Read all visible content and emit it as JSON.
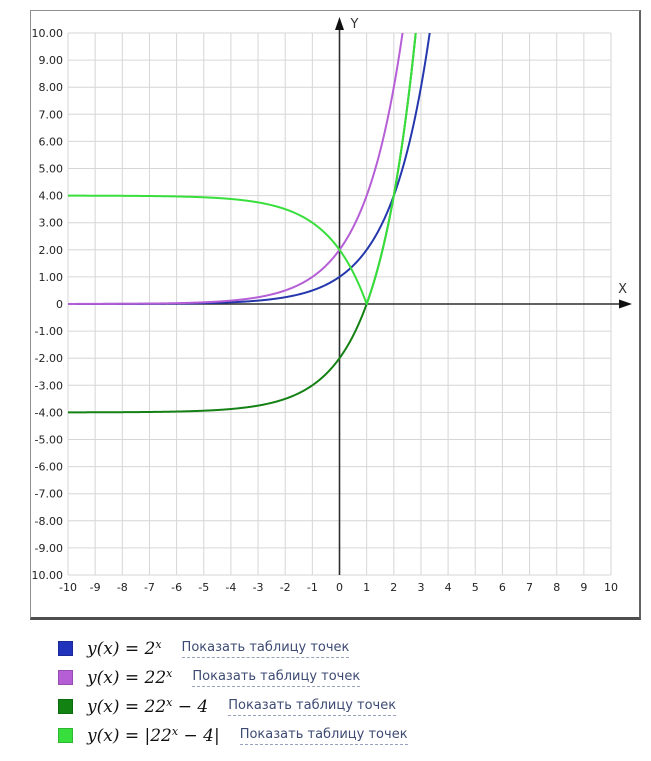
{
  "chart_data": {
    "type": "line",
    "title": "",
    "xlabel": "X",
    "ylabel": "Y",
    "xlim": [
      -10,
      10
    ],
    "ylim": [
      -10,
      10
    ],
    "grid": true,
    "grid_color": "#d6d6d6",
    "axis_color": "#2e2e2e",
    "tick_color": "#222222",
    "x_tick_labels": [
      "-10",
      "-9",
      "-8",
      "-7",
      "-6",
      "-5",
      "-4",
      "-3",
      "-2",
      "-1",
      "0",
      "1",
      "2",
      "3",
      "4",
      "5",
      "6",
      "7",
      "8",
      "9",
      "10"
    ],
    "y_tick_labels": [
      "10.00",
      "9.00",
      "8.00",
      "7.00",
      "6.00",
      "5.00",
      "4.00",
      "3.00",
      "2.00",
      "1.00",
      "0",
      "-1.00",
      "-2.00",
      "-3.00",
      "-4.00",
      "-5.00",
      "-6.00",
      "-7.00",
      "-8.00",
      "-9.00",
      "-10.00"
    ],
    "series": [
      {
        "name": "y(x) = 2^x",
        "expression": "2^x",
        "coef": 1,
        "base": 2,
        "offset": 0,
        "abs": false,
        "color": "#2537ad",
        "sample_points": [
          [
            -10,
            0.001
          ],
          [
            -2,
            0.25
          ],
          [
            0,
            1
          ],
          [
            1,
            2
          ],
          [
            2,
            4
          ],
          [
            3,
            8
          ],
          [
            3.32,
            10
          ]
        ]
      },
      {
        "name": "y(x) = 22^x",
        "expression": "2*2^x",
        "coef": 2,
        "base": 2,
        "offset": 0,
        "abs": false,
        "color": "#b55ed6",
        "sample_points": [
          [
            -10,
            0.002
          ],
          [
            -2,
            0.5
          ],
          [
            0,
            2
          ],
          [
            1,
            4
          ],
          [
            2,
            8
          ],
          [
            2.32,
            10
          ]
        ]
      },
      {
        "name": "y(x) = 22^x − 4",
        "expression": "2*2^x - 4",
        "coef": 2,
        "base": 2,
        "offset": -4,
        "abs": false,
        "color": "#148114",
        "sample_points": [
          [
            -10,
            -4
          ],
          [
            -2,
            -3.5
          ],
          [
            0,
            -2
          ],
          [
            1,
            0
          ],
          [
            2,
            4
          ],
          [
            2.81,
            10
          ]
        ]
      },
      {
        "name": "y(x) = |22^x − 4|",
        "expression": "abs(2*2^x - 4)",
        "coef": 2,
        "base": 2,
        "offset": -4,
        "abs": true,
        "color": "#38df3c",
        "sample_points": [
          [
            -10,
            4
          ],
          [
            -2,
            3.5
          ],
          [
            0,
            2
          ],
          [
            1,
            0
          ],
          [
            2,
            4
          ],
          [
            2.81,
            10
          ]
        ]
      }
    ]
  },
  "legend": {
    "items": [
      {
        "color": "#2233bb",
        "formula": "y(x) = 2^x",
        "link": "Показать таблицу точек"
      },
      {
        "color": "#b55ed6",
        "formula": "y(x) = 22^x",
        "link": "Показать таблицу точек"
      },
      {
        "color": "#128212",
        "formula": "y(x) = 22^x − 4",
        "link": "Показать таблицу точек"
      },
      {
        "color": "#38df3c",
        "formula": "y(x) = |22^x − 4|",
        "link": "Показать таблицу точек"
      }
    ]
  }
}
